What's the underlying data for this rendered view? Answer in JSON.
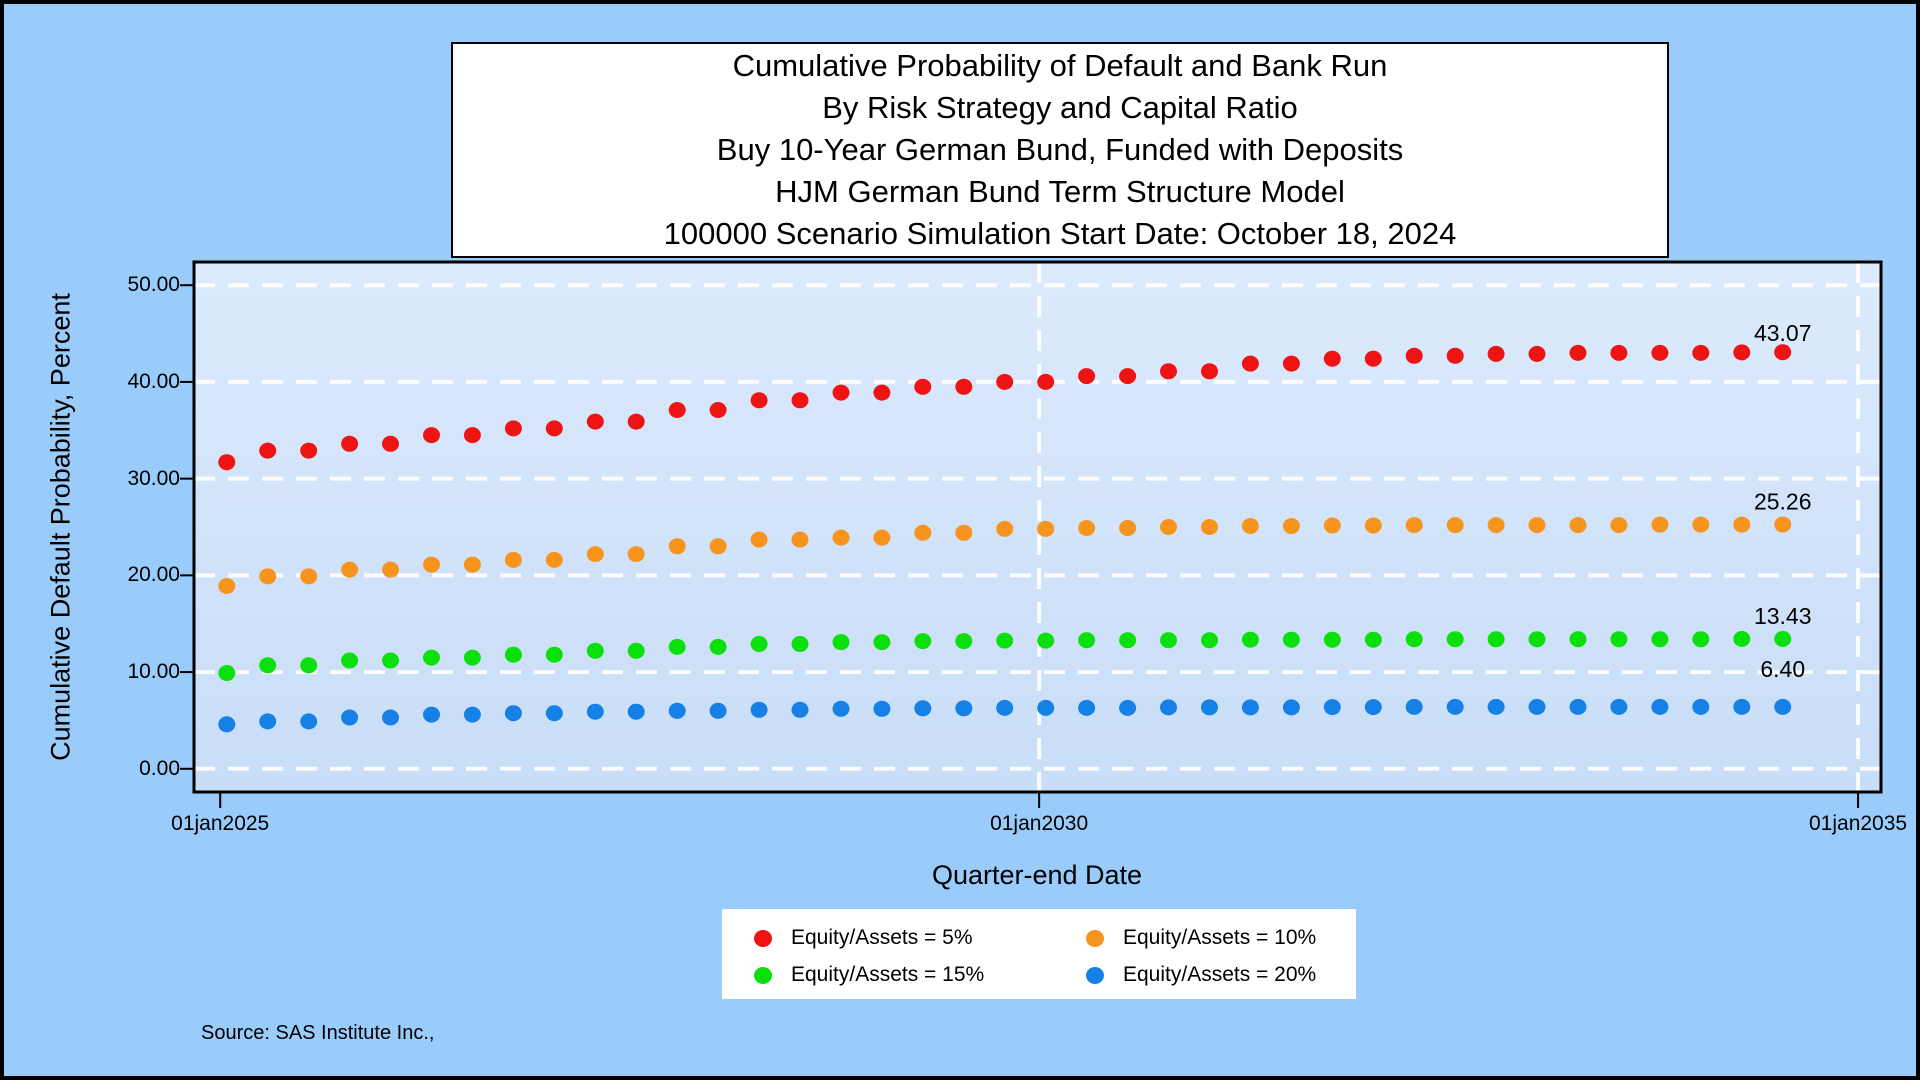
{
  "chart_data": {
    "type": "scatter",
    "title_lines": [
      "Cumulative Probability of Default and Bank Run",
      "By Risk Strategy and Capital Ratio",
      "Buy 10-Year German Bund, Funded with Deposits",
      "HJM German Bund Term Structure Model",
      "100000 Scenario Simulation Start Date: October 18, 2024"
    ],
    "x_axis": {
      "label": "Quarter-end Date",
      "range": [
        2024.84,
        2035.14
      ],
      "ticks": [
        {
          "value": 2025,
          "label": "01jan2025"
        },
        {
          "value": 2030,
          "label": "01jan2030"
        },
        {
          "value": 2035,
          "label": "01jan2035"
        }
      ],
      "gridline_values": [
        2030,
        2035
      ]
    },
    "y_axis": {
      "label": "Cumulative Default Probability, Percent",
      "range": [
        -2.4,
        52.4
      ],
      "ticks": [
        {
          "value": 0,
          "label": "0.00"
        },
        {
          "value": 10,
          "label": "10.00"
        },
        {
          "value": 20,
          "label": "20.00"
        },
        {
          "value": 30,
          "label": "30.00"
        },
        {
          "value": 40,
          "label": "40.00"
        },
        {
          "value": 50,
          "label": "50.00"
        }
      ],
      "gridline_values": [
        0,
        10,
        20,
        30,
        40,
        50
      ]
    },
    "grid": "on",
    "x": [
      2025.04,
      2025.29,
      2025.54,
      2025.79,
      2026.04,
      2026.29,
      2026.54,
      2026.79,
      2027.04,
      2027.29,
      2027.54,
      2027.79,
      2028.04,
      2028.29,
      2028.54,
      2028.79,
      2029.04,
      2029.29,
      2029.54,
      2029.79,
      2030.04,
      2030.29,
      2030.54,
      2030.79,
      2031.04,
      2031.29,
      2031.54,
      2031.79,
      2032.04,
      2032.29,
      2032.54,
      2032.79,
      2033.04,
      2033.29,
      2033.54,
      2033.79,
      2034.04,
      2034.29,
      2034.54
    ],
    "series": [
      {
        "name": "Equity/Assets = 5%",
        "color": "#EE1414",
        "end_label": "43.07",
        "values": [
          31.7,
          32.9,
          32.9,
          33.6,
          33.6,
          34.5,
          34.5,
          35.2,
          35.2,
          35.9,
          35.9,
          37.1,
          37.1,
          38.1,
          38.1,
          38.9,
          38.9,
          39.5,
          39.5,
          40.0,
          40.0,
          40.6,
          40.6,
          41.1,
          41.1,
          41.9,
          41.9,
          42.4,
          42.4,
          42.7,
          42.7,
          42.9,
          42.9,
          43.0,
          43.0,
          43.0,
          43.0,
          43.05,
          43.07
        ]
      },
      {
        "name": "Equity/Assets = 10%",
        "color": "#F7941D",
        "end_label": "25.26",
        "values": [
          18.9,
          19.9,
          19.9,
          20.6,
          20.6,
          21.1,
          21.1,
          21.6,
          21.6,
          22.2,
          22.2,
          23.0,
          23.0,
          23.7,
          23.7,
          23.9,
          23.9,
          24.4,
          24.4,
          24.8,
          24.8,
          24.9,
          24.9,
          25.0,
          25.0,
          25.1,
          25.1,
          25.15,
          25.15,
          25.2,
          25.2,
          25.2,
          25.2,
          25.2,
          25.2,
          25.25,
          25.25,
          25.25,
          25.26
        ]
      },
      {
        "name": "Equity/Assets = 15%",
        "color": "#0CE00C",
        "end_label": "13.43",
        "values": [
          9.9,
          10.7,
          10.7,
          11.2,
          11.2,
          11.5,
          11.5,
          11.8,
          11.8,
          12.2,
          12.2,
          12.6,
          12.6,
          12.9,
          12.9,
          13.1,
          13.1,
          13.2,
          13.2,
          13.25,
          13.25,
          13.3,
          13.3,
          13.3,
          13.3,
          13.35,
          13.35,
          13.35,
          13.35,
          13.4,
          13.4,
          13.4,
          13.4,
          13.4,
          13.4,
          13.4,
          13.4,
          13.43,
          13.43
        ]
      },
      {
        "name": "Equity/Assets = 20%",
        "color": "#1581E6",
        "end_label": "6.40",
        "values": [
          4.6,
          4.9,
          4.9,
          5.3,
          5.3,
          5.6,
          5.6,
          5.75,
          5.75,
          5.9,
          5.9,
          6.0,
          6.0,
          6.1,
          6.1,
          6.2,
          6.2,
          6.25,
          6.25,
          6.3,
          6.3,
          6.3,
          6.3,
          6.35,
          6.35,
          6.35,
          6.35,
          6.38,
          6.38,
          6.4,
          6.4,
          6.4,
          6.4,
          6.4,
          6.4,
          6.4,
          6.4,
          6.4,
          6.4
        ]
      }
    ],
    "legend": {
      "position": "bottom-center",
      "items": [
        {
          "series_index": 0,
          "label": "Equity/Assets = 5%"
        },
        {
          "series_index": 1,
          "label": "Equity/Assets = 10%"
        },
        {
          "series_index": 2,
          "label": "Equity/Assets = 15%"
        },
        {
          "series_index": 3,
          "label": "Equity/Assets = 20%"
        }
      ]
    }
  },
  "colors": {
    "figure_background": "#99CBFB",
    "plot_background_top": "#DCEAFC",
    "plot_background_bottom": "#C8DDF7",
    "gridline": "#FFFFFF",
    "border": "#000000",
    "marker_red": "#EE1414",
    "marker_orange": "#F7941D",
    "marker_green": "#0CE00C",
    "marker_blue": "#1581E6"
  },
  "source_note": "Source: SAS Institute Inc.,"
}
